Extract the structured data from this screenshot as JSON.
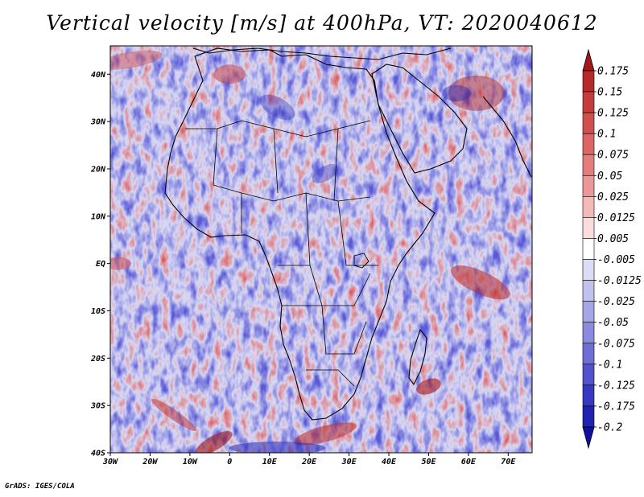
{
  "chart_data": {
    "type": "heatmap",
    "title": "Vertical velocity [m/s] at 400hPa, VT: 2020040612",
    "xlabel": "",
    "ylabel": "",
    "xlim": [
      -30,
      76
    ],
    "ylim": [
      -40,
      46
    ],
    "x_ticks": [
      {
        "value": -30,
        "label": "30W"
      },
      {
        "value": -20,
        "label": "20W"
      },
      {
        "value": -10,
        "label": "10W"
      },
      {
        "value": 0,
        "label": "0"
      },
      {
        "value": 10,
        "label": "10E"
      },
      {
        "value": 20,
        "label": "20E"
      },
      {
        "value": 30,
        "label": "30E"
      },
      {
        "value": 40,
        "label": "40E"
      },
      {
        "value": 50,
        "label": "50E"
      },
      {
        "value": 60,
        "label": "60E"
      },
      {
        "value": 70,
        "label": "70E"
      }
    ],
    "y_ticks": [
      {
        "value": 40,
        "label": "40N"
      },
      {
        "value": 30,
        "label": "30N"
      },
      {
        "value": 20,
        "label": "20N"
      },
      {
        "value": 10,
        "label": "10N"
      },
      {
        "value": 0,
        "label": "EQ"
      },
      {
        "value": -10,
        "label": "10S"
      },
      {
        "value": -20,
        "label": "20S"
      },
      {
        "value": -30,
        "label": "30S"
      },
      {
        "value": -40,
        "label": "40S"
      }
    ],
    "colorbar": {
      "levels": [
        "0.175",
        "0.15",
        "0.125",
        "0.1",
        "0.075",
        "0.05",
        "0.025",
        "0.0125",
        "0.005",
        "-0.005",
        "-0.0125",
        "-0.025",
        "-0.05",
        "-0.075",
        "-0.1",
        "-0.125",
        "-0.175",
        "-0.2"
      ],
      "colors": [
        "#a01818",
        "#b52a2a",
        "#c43c3c",
        "#d05050",
        "#dc6666",
        "#e47e7e",
        "#ec9898",
        "#f4baba",
        "#fadcdc",
        "#ffffff",
        "#dcdcf6",
        "#c2c2ee",
        "#a6a6e6",
        "#8a8ade",
        "#6e6ed6",
        "#5252cc",
        "#3838c0",
        "#2222b0",
        "#1010a0"
      ]
    }
  },
  "credit": "GrADS: IGES/COLA"
}
